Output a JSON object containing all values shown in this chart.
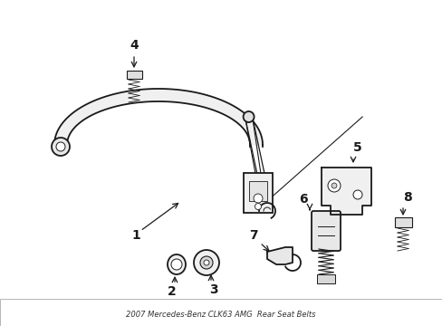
{
  "background_color": "#ffffff",
  "line_color": "#1a1a1a",
  "figsize": [
    4.89,
    3.6
  ],
  "dpi": 100,
  "part1_label": "1",
  "part2_label": "2",
  "part3_label": "3",
  "part4_label": "4",
  "part5_label": "5",
  "part6_label": "6",
  "part7_label": "7",
  "part8_label": "8"
}
